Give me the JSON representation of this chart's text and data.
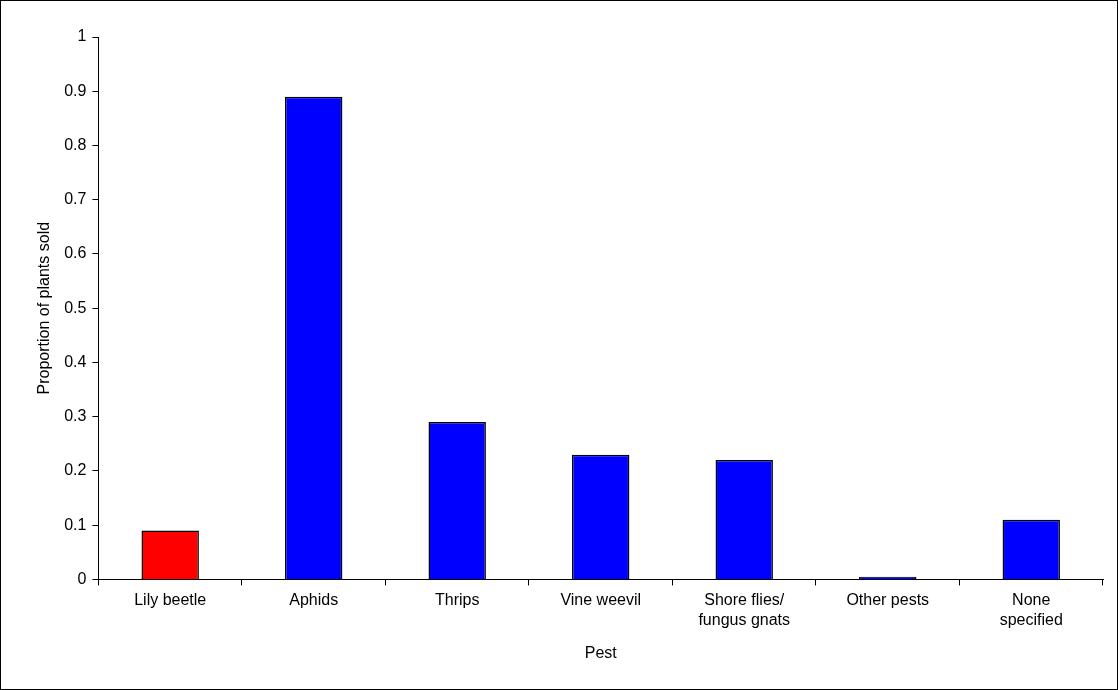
{
  "chart_data": {
    "type": "bar",
    "xlabel": "Pest",
    "ylabel": "Proportion of plants sold",
    "categories": [
      "Lily beetle",
      "Aphids",
      "Thrips",
      "Vine weevil",
      "Shore flies/ fungus gnats",
      "Other pests",
      "None specified"
    ],
    "values": [
      0.09,
      0.89,
      0.29,
      0.23,
      0.22,
      0.005,
      0.11
    ],
    "colors": [
      "#ff0000",
      "#0000ff",
      "#0000ff",
      "#0000ff",
      "#0000ff",
      "#0000ff",
      "#0000ff"
    ],
    "ylim": [
      0,
      1
    ],
    "yticks": [
      0,
      0.1,
      0.2,
      0.3,
      0.4,
      0.5,
      0.6,
      0.7,
      0.8,
      0.9,
      1
    ],
    "grid": false,
    "legend": false
  }
}
